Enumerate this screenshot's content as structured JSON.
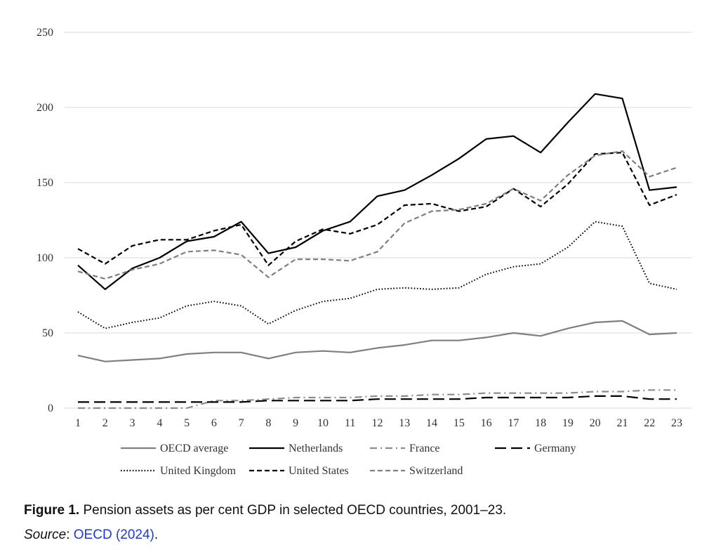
{
  "chart_data": {
    "type": "line",
    "x": [
      "1",
      "2",
      "3",
      "4",
      "5",
      "6",
      "7",
      "8",
      "9",
      "10",
      "11",
      "12",
      "13",
      "14",
      "15",
      "16",
      "17",
      "18",
      "19",
      "20",
      "21",
      "22",
      "23"
    ],
    "ylim": [
      0,
      250
    ],
    "yticks": [
      0,
      50,
      100,
      150,
      200,
      250
    ],
    "grid": true,
    "legend_position": "bottom",
    "series": [
      {
        "name": "OECD average",
        "color": "#7f7f7f",
        "style": "solid",
        "values": [
          35,
          31,
          32,
          33,
          36,
          37,
          37,
          33,
          37,
          38,
          37,
          40,
          42,
          45,
          45,
          47,
          50,
          48,
          53,
          57,
          58,
          49,
          50
        ]
      },
      {
        "name": "Netherlands",
        "color": "#000000",
        "style": "solid",
        "values": [
          95,
          79,
          93,
          100,
          111,
          114,
          124,
          103,
          107,
          118,
          124,
          141,
          145,
          155,
          166,
          179,
          181,
          170,
          190,
          209,
          206,
          145,
          147
        ]
      },
      {
        "name": "France",
        "color": "#8c8c8c",
        "style": "dashdot",
        "values": [
          0,
          0,
          0,
          0,
          0,
          5,
          5,
          6,
          7,
          7,
          7,
          8,
          8,
          9,
          9,
          10,
          10,
          10,
          10,
          11,
          11,
          12,
          12
        ]
      },
      {
        "name": "Germany",
        "color": "#000000",
        "style": "longdash",
        "values": [
          4,
          4,
          4,
          4,
          4,
          4,
          4,
          5,
          5,
          5,
          5,
          6,
          6,
          6,
          6,
          7,
          7,
          7,
          7,
          8,
          8,
          6,
          6
        ]
      },
      {
        "name": "United Kingdom",
        "color": "#000000",
        "style": "dotted",
        "values": [
          64,
          53,
          57,
          60,
          68,
          71,
          68,
          56,
          65,
          71,
          73,
          79,
          80,
          79,
          80,
          89,
          94,
          96,
          107,
          124,
          121,
          83,
          79
        ]
      },
      {
        "name": "United States",
        "color": "#000000",
        "style": "dashed",
        "values": [
          106,
          96,
          108,
          112,
          112,
          118,
          122,
          95,
          111,
          119,
          116,
          122,
          135,
          136,
          131,
          134,
          146,
          134,
          149,
          169,
          170,
          135,
          142
        ]
      },
      {
        "name": "Switzerland",
        "color": "#7f7f7f",
        "style": "dashed",
        "values": [
          91,
          86,
          92,
          96,
          104,
          105,
          102,
          87,
          99,
          99,
          98,
          104,
          123,
          131,
          132,
          136,
          146,
          138,
          155,
          168,
          171,
          154,
          160
        ]
      }
    ]
  },
  "caption": {
    "figure_label": "Figure 1.",
    "text": " Pension assets as per cent GDP in selected OECD countries, 2001–23."
  },
  "source": {
    "label": "Source",
    "separator": ": ",
    "link_text": "OECD (2024)",
    "end": "."
  }
}
